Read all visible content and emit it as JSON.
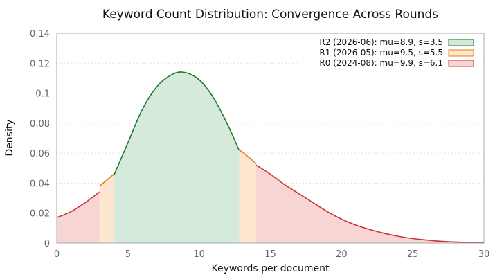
{
  "chart_data": {
    "type": "area",
    "title": "Keyword Count Distribution: Convergence Across Rounds",
    "xlabel": "Keywords per document",
    "ylabel": "Density",
    "xlim": [
      0,
      30
    ],
    "ylim": [
      0,
      0.14
    ],
    "x_ticks": [
      "0",
      "5",
      "10",
      "15",
      "20",
      "25",
      "30"
    ],
    "y_ticks": [
      "0",
      "0.02",
      "0.04",
      "0.06",
      "0.08",
      "0.1",
      "0.12",
      "0.14"
    ],
    "grid": "horizontal",
    "legend_position": "top-right",
    "series": [
      {
        "name": "R2 (2026-06): mu=8.9, s=3.5",
        "line_color": "#1a7a2a",
        "fill_color": "#d6eadc",
        "points": [
          [
            4,
            0.045
          ],
          [
            5,
            0.067
          ],
          [
            6,
            0.089
          ],
          [
            7,
            0.104
          ],
          [
            8,
            0.112
          ],
          [
            8.9,
            0.114
          ],
          [
            10,
            0.109
          ],
          [
            11,
            0.097
          ],
          [
            12,
            0.079
          ],
          [
            12.8,
            0.062
          ]
        ]
      },
      {
        "name": "R1 (2026-05): mu=9.5, s=5.5",
        "line_color": "#d97f1a",
        "fill_color": "#fde6cf",
        "points": [
          [
            3,
            0.038
          ],
          [
            4,
            0.046
          ],
          [
            5,
            0.055
          ],
          [
            6,
            0.062
          ],
          [
            7,
            0.067
          ],
          [
            8,
            0.071
          ],
          [
            9,
            0.072
          ],
          [
            10,
            0.072
          ],
          [
            11,
            0.07
          ],
          [
            12,
            0.066
          ],
          [
            13,
            0.061
          ],
          [
            14,
            0.053
          ]
        ]
      },
      {
        "name": "R0 (2024-08): mu=9.9, s=6.1",
        "line_color": "#cc3333",
        "fill_color": "#f8d5d5",
        "points": [
          [
            0,
            0.017
          ],
          [
            1,
            0.021
          ],
          [
            2,
            0.027
          ],
          [
            3,
            0.034
          ],
          [
            4,
            0.041
          ],
          [
            5,
            0.048
          ],
          [
            6,
            0.054
          ],
          [
            7,
            0.059
          ],
          [
            8,
            0.063
          ],
          [
            9,
            0.065
          ],
          [
            10,
            0.065
          ],
          [
            11,
            0.064
          ],
          [
            12,
            0.061
          ],
          [
            13,
            0.057
          ],
          [
            14,
            0.052
          ],
          [
            15,
            0.046
          ],
          [
            16,
            0.039
          ],
          [
            17,
            0.033
          ],
          [
            18,
            0.027
          ],
          [
            19,
            0.021
          ],
          [
            20,
            0.016
          ],
          [
            21,
            0.012
          ],
          [
            22,
            0.009
          ],
          [
            23,
            0.0065
          ],
          [
            24,
            0.0045
          ],
          [
            25,
            0.003
          ],
          [
            26,
            0.002
          ],
          [
            27,
            0.0012
          ],
          [
            28,
            0.0007
          ],
          [
            29,
            0.0004
          ],
          [
            30,
            0.0002
          ]
        ]
      }
    ]
  }
}
